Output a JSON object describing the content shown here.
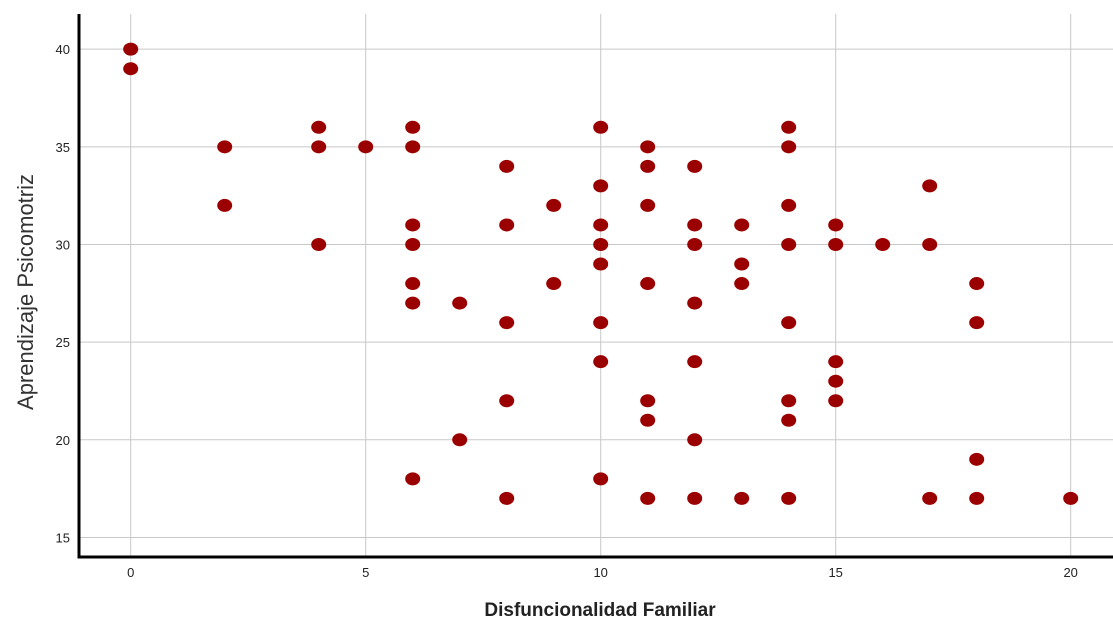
{
  "chart_data": {
    "type": "scatter",
    "title": "",
    "xlabel": "Disfuncionalidad Familiar",
    "ylabel": "Aprendizaje Psicomotriz",
    "xlim": [
      -1.1,
      20.9
    ],
    "ylim": [
      14,
      41.8
    ],
    "xticks": [
      0,
      5,
      10,
      15,
      20
    ],
    "yticks": [
      15,
      20,
      25,
      30,
      35,
      40
    ],
    "grid": true,
    "marker_color": "#9b0000",
    "points": [
      [
        0,
        40
      ],
      [
        0,
        39
      ],
      [
        2,
        35
      ],
      [
        2,
        32
      ],
      [
        4,
        36
      ],
      [
        4,
        35
      ],
      [
        4,
        30
      ],
      [
        5,
        35
      ],
      [
        6,
        36
      ],
      [
        6,
        35
      ],
      [
        6,
        31
      ],
      [
        6,
        30
      ],
      [
        6,
        28
      ],
      [
        6,
        27
      ],
      [
        6,
        18
      ],
      [
        7,
        27
      ],
      [
        7,
        20
      ],
      [
        8,
        34
      ],
      [
        8,
        31
      ],
      [
        8,
        26
      ],
      [
        8,
        22
      ],
      [
        8,
        17
      ],
      [
        9,
        32
      ],
      [
        9,
        28
      ],
      [
        10,
        36
      ],
      [
        10,
        33
      ],
      [
        10,
        31
      ],
      [
        10,
        30
      ],
      [
        10,
        29
      ],
      [
        10,
        26
      ],
      [
        10,
        24
      ],
      [
        10,
        18
      ],
      [
        11,
        35
      ],
      [
        11,
        34
      ],
      [
        11,
        32
      ],
      [
        11,
        28
      ],
      [
        11,
        22
      ],
      [
        11,
        21
      ],
      [
        11,
        17
      ],
      [
        12,
        34
      ],
      [
        12,
        31
      ],
      [
        12,
        30
      ],
      [
        12,
        27
      ],
      [
        12,
        24
      ],
      [
        12,
        20
      ],
      [
        12,
        17
      ],
      [
        13,
        31
      ],
      [
        13,
        29
      ],
      [
        13,
        28
      ],
      [
        13,
        17
      ],
      [
        14,
        36
      ],
      [
        14,
        35
      ],
      [
        14,
        32
      ],
      [
        14,
        30
      ],
      [
        14,
        26
      ],
      [
        14,
        22
      ],
      [
        14,
        21
      ],
      [
        14,
        17
      ],
      [
        15,
        31
      ],
      [
        15,
        30
      ],
      [
        15,
        24
      ],
      [
        15,
        23
      ],
      [
        15,
        22
      ],
      [
        16,
        30
      ],
      [
        17,
        33
      ],
      [
        17,
        30
      ],
      [
        17,
        17
      ],
      [
        18,
        28
      ],
      [
        18,
        26
      ],
      [
        18,
        19
      ],
      [
        18,
        17
      ],
      [
        20,
        17
      ]
    ]
  }
}
